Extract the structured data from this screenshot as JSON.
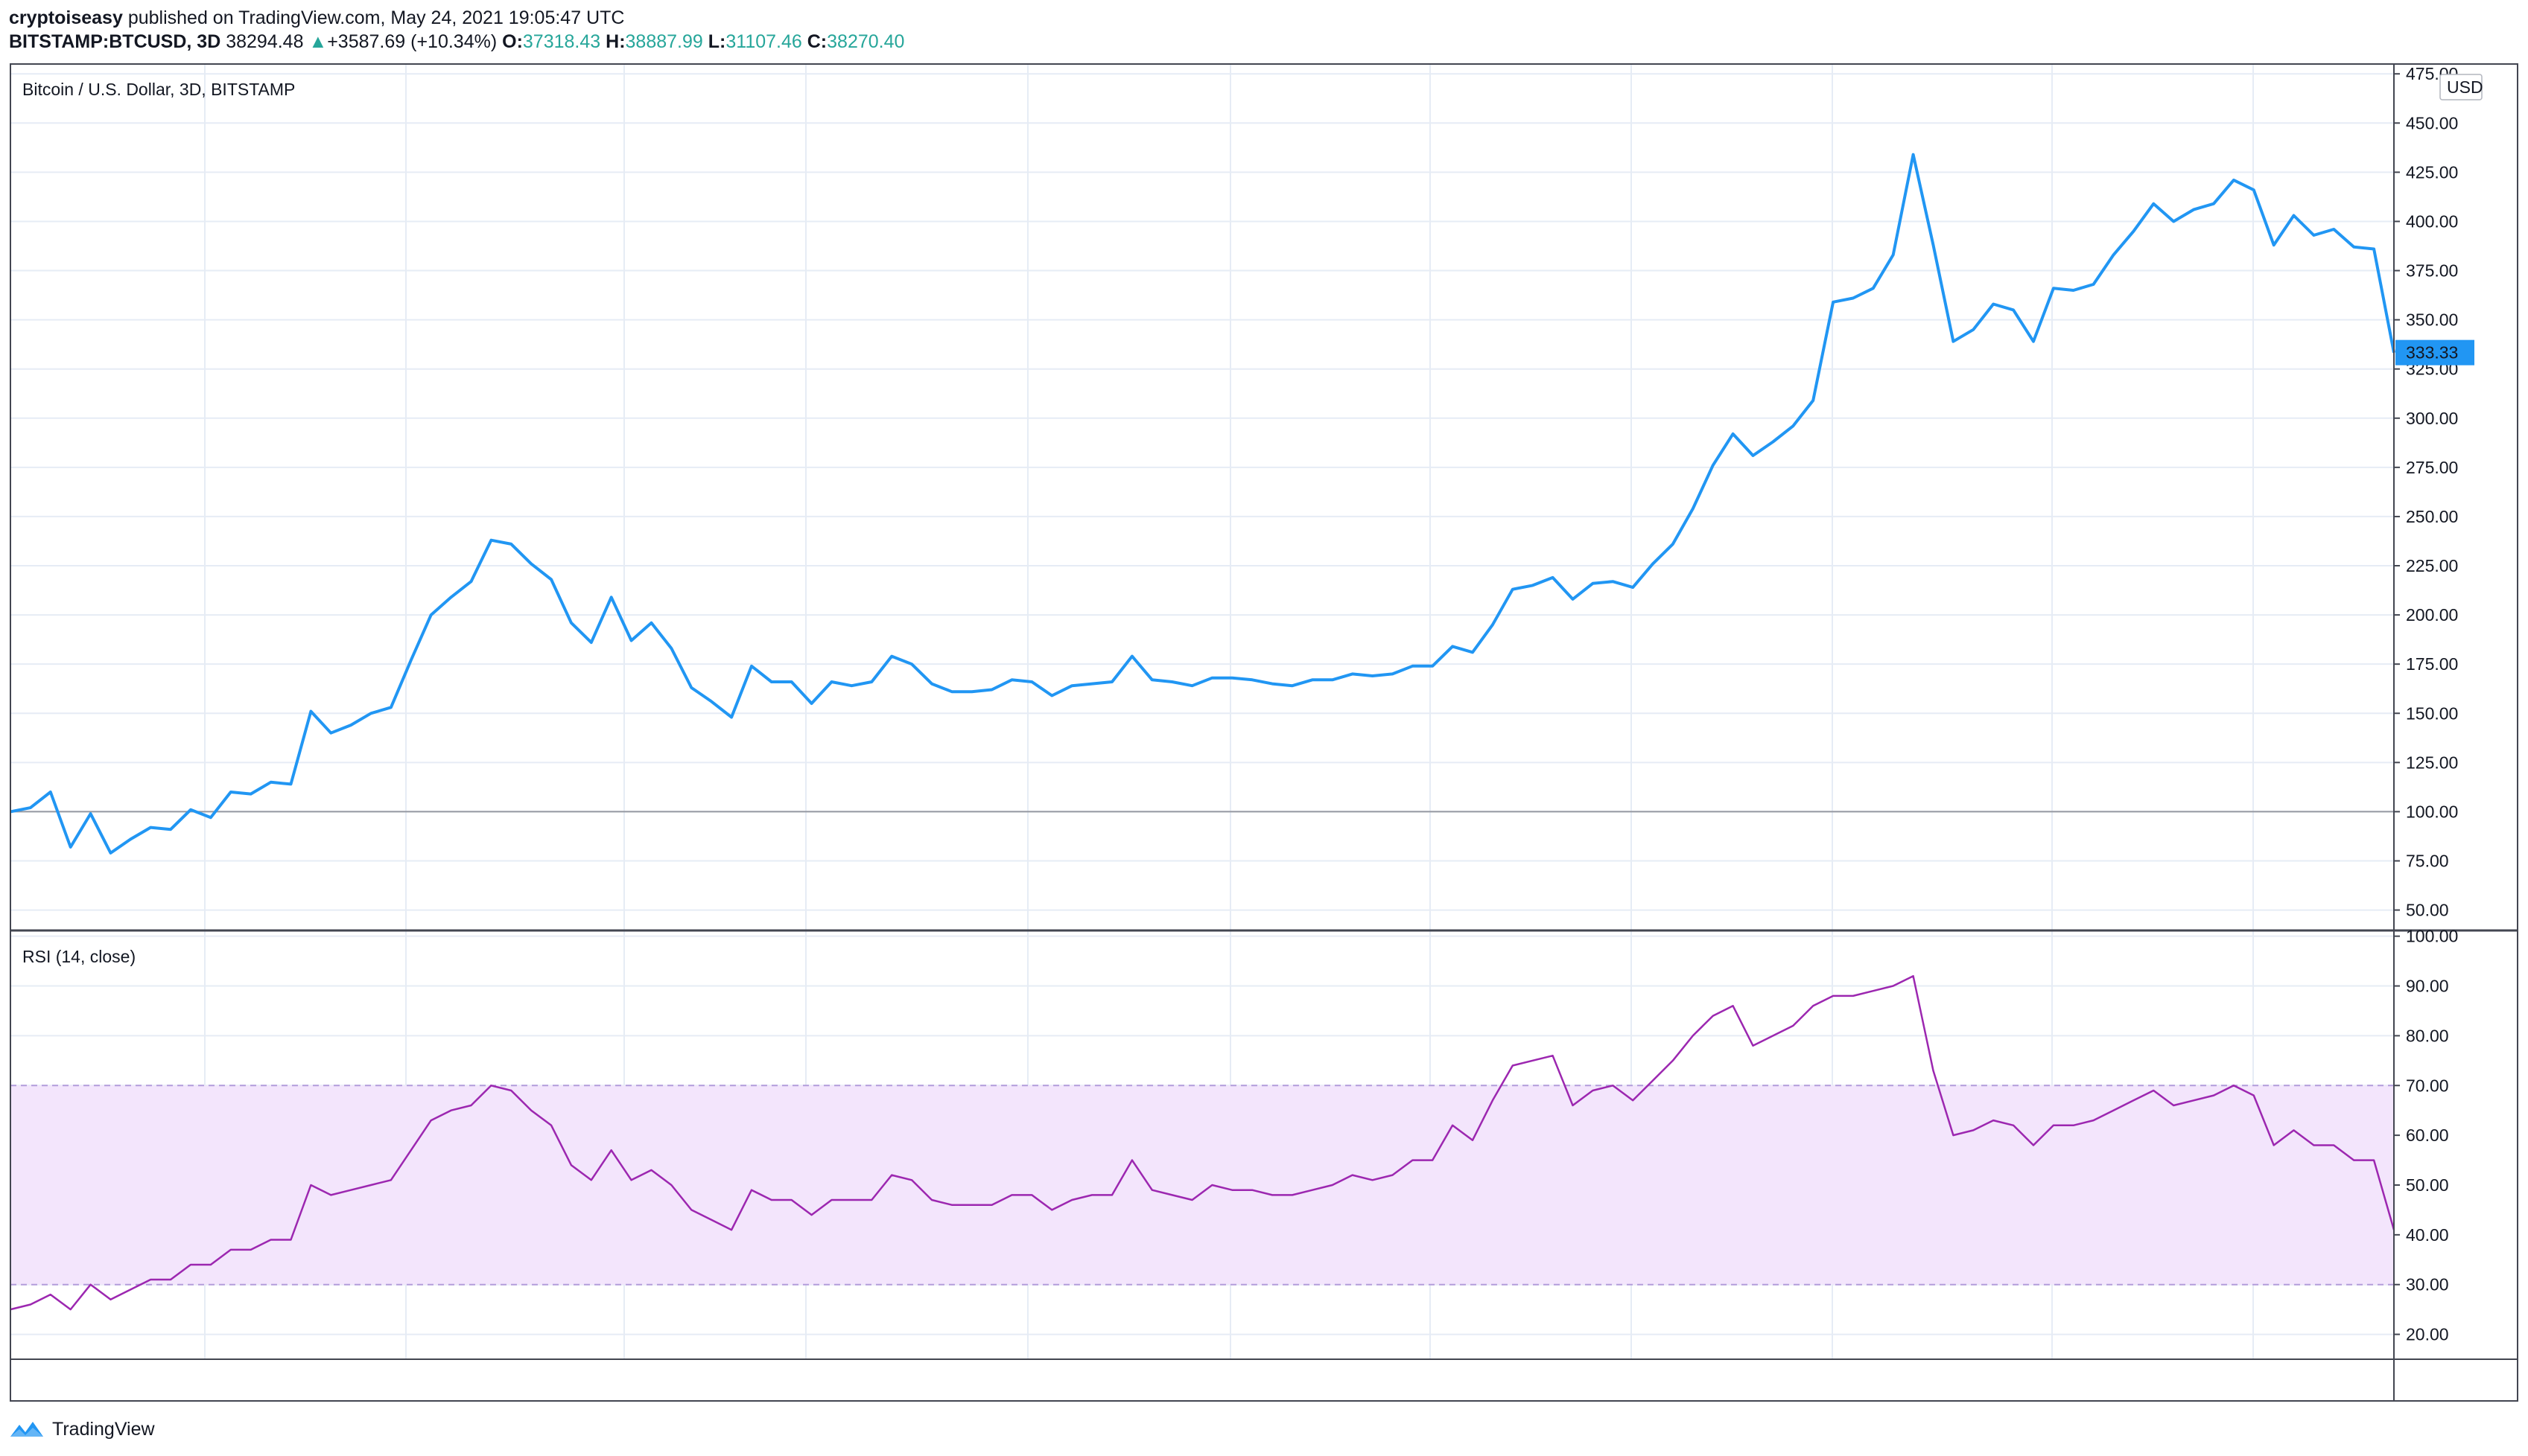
{
  "header": {
    "author": "cryptoiseasy",
    "published": "published on TradingView.com, May 24, 2021 19:05:47 UTC",
    "symbol": "BITSTAMP:BTCUSD, 3D",
    "last": "38294.48",
    "change_arrow": "▲",
    "change": "+3587.69 (+10.34%)",
    "o_label": "O:",
    "o": "37318.43",
    "h_label": "H:",
    "h": "38887.99",
    "l_label": "L:",
    "l": "31107.46",
    "c_label": "C:",
    "c": "38270.40"
  },
  "colors": {
    "price_line": "#2196f3",
    "rsi_line": "#9c27b0",
    "rsi_band": "#f3e5fc",
    "grid": "#e6ecf5",
    "baseline": "#9598a1",
    "last_label_bg": "#2196f3"
  },
  "chart_data": [
    {
      "type": "line",
      "title": "Bitcoin / U.S. Dollar, 3D, BITSTAMP",
      "unit_label": "USD",
      "ylim": [
        40,
        480
      ],
      "yticks": [
        "475.00",
        "450.00",
        "425.00",
        "400.00",
        "375.00",
        "350.00",
        "325.00",
        "300.00",
        "275.00",
        "250.00",
        "225.00",
        "200.00",
        "175.00",
        "150.00",
        "125.00",
        "100.00",
        "75.00",
        "50.00"
      ],
      "baseline": 100,
      "last_value_label": "333.33",
      "series": [
        {
          "values": [
            100,
            102,
            110,
            82,
            99,
            79,
            86,
            92,
            91,
            101,
            97,
            110,
            109,
            115,
            114,
            151,
            140,
            144,
            150,
            153,
            177,
            200,
            209,
            217,
            238,
            236,
            226,
            218,
            196,
            186,
            209,
            187,
            196,
            183,
            163,
            156,
            148,
            174,
            166,
            166,
            155,
            166,
            164,
            166,
            179,
            175,
            165,
            161,
            161,
            162,
            167,
            166,
            159,
            164,
            165,
            166,
            179,
            167,
            166,
            164,
            168,
            168,
            167,
            165,
            164,
            167,
            167,
            170,
            169,
            170,
            174,
            174,
            184,
            181,
            195,
            213,
            215,
            219,
            208,
            216,
            217,
            214,
            226,
            236,
            254,
            276,
            292,
            281,
            288,
            296,
            309,
            359,
            361,
            366,
            383,
            434,
            388,
            339,
            345,
            358,
            355,
            339,
            366,
            365,
            368,
            383,
            395,
            409,
            400,
            406,
            409,
            421,
            416,
            388,
            403,
            393,
            396,
            387,
            386,
            333.33
          ]
        }
      ]
    },
    {
      "type": "line",
      "title": "RSI (14, close)",
      "ylim": [
        15,
        101
      ],
      "yticks": [
        "100.00",
        "90.00",
        "80.00",
        "70.00",
        "60.00",
        "50.00",
        "40.00",
        "30.00",
        "20.00"
      ],
      "band": [
        30,
        70
      ],
      "series": [
        {
          "values": [
            25,
            26,
            28,
            25,
            30,
            27,
            29,
            31,
            31,
            34,
            34,
            37,
            37,
            39,
            39,
            50,
            48,
            49,
            50,
            51,
            57,
            63,
            65,
            66,
            70,
            69,
            65,
            62,
            54,
            51,
            57,
            51,
            53,
            50,
            45,
            43,
            41,
            49,
            47,
            47,
            44,
            47,
            47,
            47,
            52,
            51,
            47,
            46,
            46,
            46,
            48,
            48,
            45,
            47,
            48,
            48,
            55,
            49,
            48,
            47,
            50,
            49,
            49,
            48,
            48,
            49,
            50,
            52,
            51,
            52,
            55,
            55,
            62,
            59,
            67,
            74,
            75,
            76,
            66,
            69,
            70,
            67,
            71,
            75,
            80,
            84,
            86,
            78,
            80,
            82,
            86,
            88,
            88,
            89,
            90,
            92,
            73,
            60,
            61,
            63,
            62,
            58,
            62,
            62,
            63,
            65,
            67,
            69,
            66,
            67,
            68,
            70,
            68,
            58,
            61,
            58,
            58,
            55,
            55,
            41
          ]
        }
      ]
    }
  ],
  "footer": {
    "brand": "TradingView"
  }
}
